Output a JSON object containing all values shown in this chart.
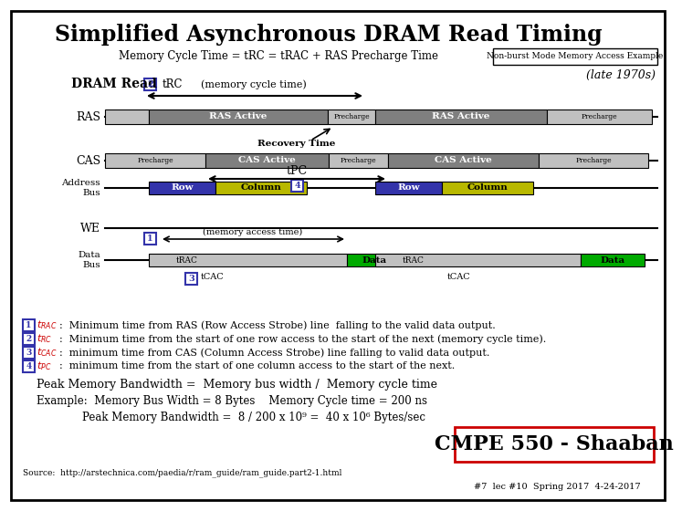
{
  "title": "Simplified Asynchronous DRAM Read Timing",
  "subtitle": "Memory Cycle Time = tRC = tRAC + RAS Precharge Time",
  "box_label": "Non-burst Mode Memory Access Example",
  "late_label": "(late 1970s)",
  "bg_color": "#ffffff",
  "title_fontsize": 17,
  "dram_read_label": "DRAM Read",
  "tRC_label": "tRC",
  "mem_cycle_label": "(memory cycle time)",
  "mem_access_label": "(memory access time)",
  "tPC_label": "tPC",
  "tCAC_label": "tCAC",
  "peak_bw": "Peak Memory Bandwidth =  Memory bus width /  Memory cycle time",
  "example1": "Example:  Memory Bus Width = 8 Bytes    Memory Cycle time = 200 ns",
  "example2": "Peak Memory Bandwidth =  8 / 200 x 10⁹ =  40 x 10⁶ Bytes/sec",
  "source": "Source:  http://arstechnica.com/paedia/r/ram_guide/ram_guide.part2-1.html",
  "footer": "#7  lec #10  Spring 2017  4-24-2017",
  "cmpe_label": "CMPE 550 - Shaaban",
  "gray_dark": "#7f7f7f",
  "gray_light": "#c0c0c0",
  "blue_color": "#3333aa",
  "yellow_color": "#b8b800",
  "green_color": "#00aa00",
  "recovery_label": "Recovery Time",
  "fn1": ":  Minimum time from RAS (Row Access Strobe) line  falling to the valid data output.",
  "fn2": ":  Minimum time from the start of one row access to the start of the next (memory cycle time).",
  "fn3": ":  minimum time from CAS (Column Access Strobe) line falling to valid data output.",
  "fn4": ":  minimum time from the start of one column access to the start of the next."
}
